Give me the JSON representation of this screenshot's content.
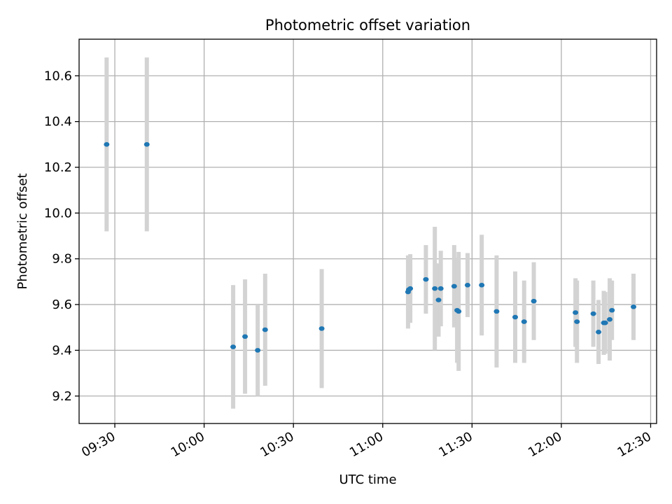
{
  "chart_data": {
    "type": "scatter",
    "title": "Photometric offset variation",
    "xlabel": "UTC time",
    "ylabel": "Photometric offset",
    "xlim": [
      "09:18",
      "12:32"
    ],
    "ylim": [
      9.08,
      10.76
    ],
    "x_ticks": [
      "09:30",
      "10:00",
      "10:30",
      "11:00",
      "11:30",
      "12:00",
      "12:30"
    ],
    "y_ticks": [
      "9.2",
      "9.4",
      "9.6",
      "9.8",
      "10.0",
      "10.2",
      "10.4",
      "10.6"
    ],
    "grid": true,
    "colors": {
      "point": "#1f77b4",
      "errorbar": "#d3d3d3"
    },
    "points": [
      {
        "time": "09:27:15",
        "value": 10.3,
        "error": 0.38
      },
      {
        "time": "09:40:45",
        "value": 10.3,
        "error": 0.38
      },
      {
        "time": "10:09:45",
        "value": 9.415,
        "error": 0.27
      },
      {
        "time": "10:13:45",
        "value": 9.46,
        "error": 0.25
      },
      {
        "time": "10:18:00",
        "value": 9.4,
        "error": 0.2
      },
      {
        "time": "10:20:30",
        "value": 9.49,
        "error": 0.245
      },
      {
        "time": "10:39:30",
        "value": 9.495,
        "error": 0.26
      },
      {
        "time": "11:08:30",
        "value": 9.655,
        "error": 0.16
      },
      {
        "time": "11:08:45",
        "value": 9.665,
        "error": 0.14
      },
      {
        "time": "11:09:15",
        "value": 9.67,
        "error": 0.15
      },
      {
        "time": "11:14:30",
        "value": 9.71,
        "error": 0.15
      },
      {
        "time": "11:17:30",
        "value": 9.67,
        "error": 0.27
      },
      {
        "time": "11:18:45",
        "value": 9.62,
        "error": 0.16
      },
      {
        "time": "11:19:30",
        "value": 9.67,
        "error": 0.165
      },
      {
        "time": "11:24:00",
        "value": 9.68,
        "error": 0.18
      },
      {
        "time": "11:25:00",
        "value": 9.575,
        "error": 0.23
      },
      {
        "time": "11:25:30",
        "value": 9.57,
        "error": 0.26
      },
      {
        "time": "11:28:30",
        "value": 9.685,
        "error": 0.14
      },
      {
        "time": "11:33:15",
        "value": 9.685,
        "error": 0.22
      },
      {
        "time": "11:38:15",
        "value": 9.57,
        "error": 0.245
      },
      {
        "time": "11:44:30",
        "value": 9.545,
        "error": 0.2
      },
      {
        "time": "11:47:30",
        "value": 9.525,
        "error": 0.18
      },
      {
        "time": "11:50:45",
        "value": 9.615,
        "error": 0.17
      },
      {
        "time": "12:04:45",
        "value": 9.565,
        "error": 0.15
      },
      {
        "time": "12:05:15",
        "value": 9.525,
        "error": 0.18
      },
      {
        "time": "12:10:45",
        "value": 9.56,
        "error": 0.145
      },
      {
        "time": "12:12:30",
        "value": 9.48,
        "error": 0.14
      },
      {
        "time": "12:14:15",
        "value": 9.52,
        "error": 0.14
      },
      {
        "time": "12:14:45",
        "value": 9.52,
        "error": 0.135
      },
      {
        "time": "12:16:15",
        "value": 9.535,
        "error": 0.18
      },
      {
        "time": "12:17:00",
        "value": 9.575,
        "error": 0.13
      },
      {
        "time": "12:24:15",
        "value": 9.59,
        "error": 0.145
      }
    ]
  }
}
